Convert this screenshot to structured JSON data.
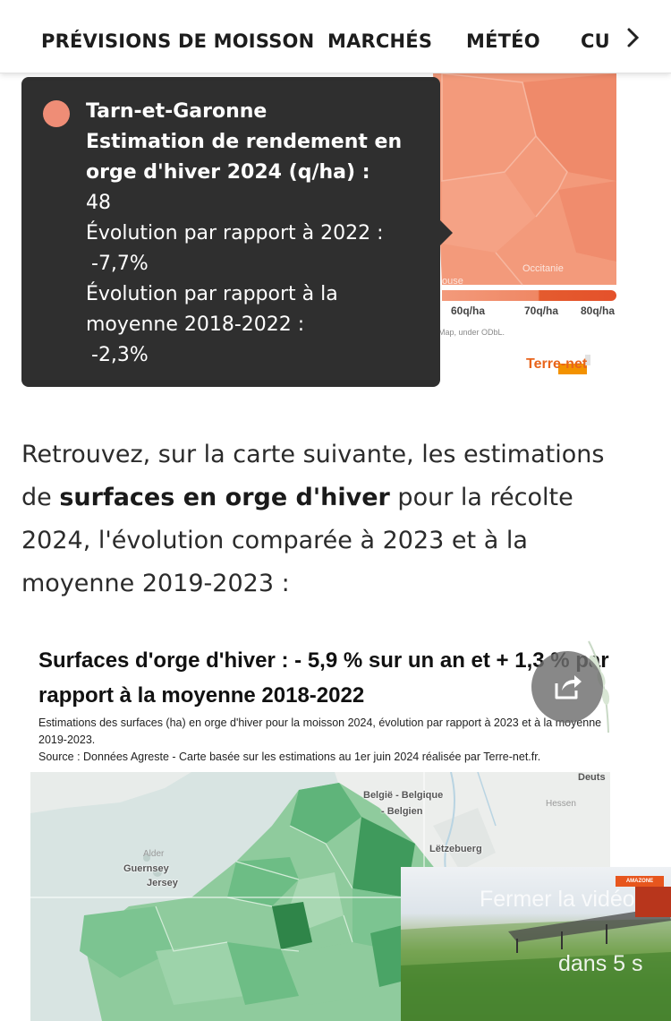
{
  "nav": {
    "items": [
      "PRÉVISIONS DE MOISSON",
      "MARCHÉS",
      "MÉTÉO",
      "CU"
    ],
    "next_icon": "chevron-right-icon"
  },
  "map1": {
    "legend_labels": [
      "60q/ha",
      "70q/ha",
      "80q/ha"
    ],
    "attribution": "Map, under ODbL.",
    "logo": "Terre-net",
    "place_labels": [
      "Occitanie",
      "ouse"
    ],
    "colors": {
      "region": "#f39a7b",
      "dark": "#e4512b"
    }
  },
  "tooltip": {
    "dot_color": "#ef8d76",
    "region": "Tarn-et-Garonne",
    "metric": "Estimation de rendement en orge d'hiver 2024 (q/ha) :",
    "value": "48",
    "evo_2022_label": "Évolution par rapport à 2022 :",
    "evo_2022_value": "-7,7%",
    "evo_avg_label": "Évolution par rapport à la moyenne 2018-2022  :",
    "evo_avg_value": "-2,3%"
  },
  "article": {
    "p_start": "Retrouvez, sur la carte suivante, les estimations de ",
    "p_strong": "surfaces en orge d'hiver",
    "p_end": " pour la récolte 2024, l'évolution comparée à 2023 et à la moyenne 2019-2023 :"
  },
  "chart2": {
    "title": "Surfaces d'orge d'hiver : - 5,9 % sur un an et + 1,3 % par rapport à la moyenne 2018-2022",
    "subtitle_line1": "Estimations des surfaces (ha) en orge d'hiver pour la moisson 2024, évolution par rapport à 2023 et à la moyenne 2019-2023.",
    "subtitle_line2": "Source : Données Agreste - Carte basée sur les estimations au 1er juin 2024 réalisée par Terre-net.fr.",
    "map_labels": [
      "België - Belgique",
      "- Belgien",
      "Lëtzebuerg",
      "Guernsey",
      "Jersey",
      "Alder",
      "Hessen",
      "Deuts"
    ],
    "colors": {
      "light": "#a8d5b0",
      "mid": "#5fb47a",
      "dark": "#2e8a4c"
    }
  },
  "share": {
    "icon": "share-icon"
  },
  "video": {
    "close_label": "Fermer la vidéo",
    "countdown": "dans 5 s",
    "brand_badge": "AMAZONE"
  }
}
